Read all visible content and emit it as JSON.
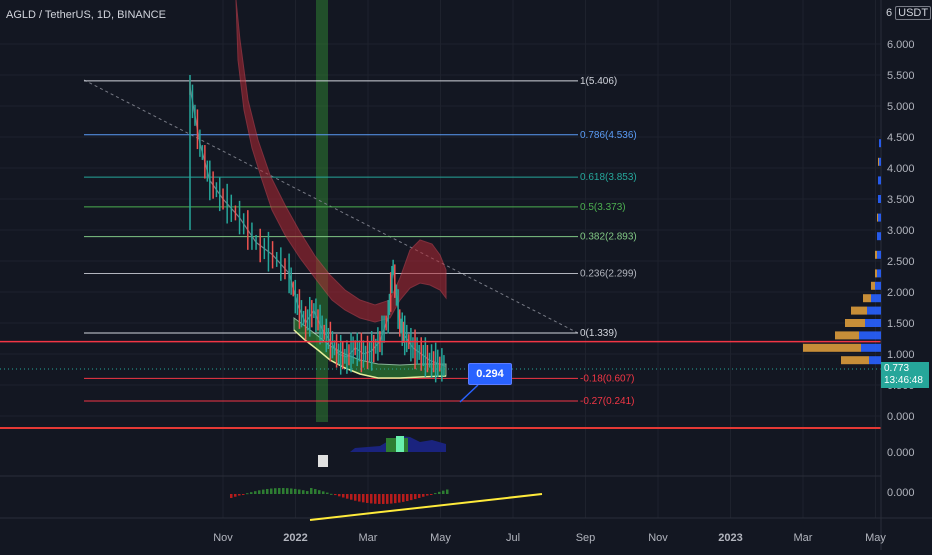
{
  "header": {
    "title": "AGLD / TetherUS, 1D, BINANCE",
    "scale_mode": "6",
    "currency": "USDT"
  },
  "last_price": {
    "value": "0.773",
    "countdown": "13:46:48"
  },
  "callout": {
    "value": "0.294"
  },
  "chart_data": {
    "type": "line",
    "title": "AGLD / TetherUS, 1D, BINANCE",
    "price_axis": {
      "ticks": [
        "6.000",
        "5.500",
        "5.000",
        "4.500",
        "4.000",
        "3.500",
        "3.000",
        "2.500",
        "2.000",
        "1.500",
        "1.000",
        "0.500",
        "0.000"
      ],
      "ylim": [
        0,
        6.3
      ]
    },
    "time_axis": {
      "ticks": [
        "Nov",
        "2022",
        "Mar",
        "May",
        "Jul",
        "Sep",
        "Nov",
        "2023",
        "Mar",
        "May"
      ]
    },
    "fibonacci": [
      {
        "label": "1(5.406)",
        "price": 5.406,
        "color": "#d1d4dc"
      },
      {
        "label": "0.786(4.536)",
        "price": 4.536,
        "color": "#5b9cf6"
      },
      {
        "label": "0.618(3.853)",
        "price": 3.853,
        "color": "#26a69a"
      },
      {
        "label": "0.5(3.373)",
        "price": 3.373,
        "color": "#4caf50"
      },
      {
        "label": "0.382(2.893)",
        "price": 2.893,
        "color": "#81c784"
      },
      {
        "label": "0.236(2.299)",
        "price": 2.299,
        "color": "#b2b5be"
      },
      {
        "label": "0(1.339)",
        "price": 1.339,
        "color": "#d1d4dc"
      },
      {
        "label": "-0.18(0.607)",
        "price": 0.607,
        "color": "#f23645"
      },
      {
        "label": "-0.27(0.241)",
        "price": 0.241,
        "color": "#f23645"
      }
    ],
    "horizontal_line": {
      "price": 1.2,
      "color": "#f23645"
    },
    "price_series": [
      [
        0.0,
        5.3
      ],
      [
        0.6,
        4.4
      ],
      [
        1.2,
        3.8
      ],
      [
        2.0,
        3.5
      ],
      [
        3.0,
        3.2
      ],
      [
        4.0,
        2.8
      ],
      [
        5.0,
        2.6
      ],
      [
        6.0,
        2.3
      ],
      [
        6.5,
        1.8
      ],
      [
        7.0,
        1.5
      ],
      [
        7.5,
        1.7
      ],
      [
        8.0,
        1.4
      ],
      [
        8.5,
        1.2
      ],
      [
        9.0,
        1.0
      ],
      [
        9.5,
        0.95
      ],
      [
        10.0,
        1.1
      ],
      [
        10.5,
        1.0
      ],
      [
        11.0,
        1.05
      ],
      [
        11.5,
        1.2
      ],
      [
        12.0,
        1.6
      ],
      [
        12.3,
        2.4
      ],
      [
        12.7,
        1.5
      ],
      [
        13.0,
        1.3
      ],
      [
        13.5,
        1.1
      ],
      [
        14.0,
        1.0
      ],
      [
        14.5,
        0.9
      ],
      [
        15.0,
        0.85
      ],
      [
        15.5,
        0.8
      ]
    ],
    "oscillator_1": {
      "zero_label": "0.000"
    },
    "oscillator_2": {
      "zero_label": "0.000"
    }
  }
}
